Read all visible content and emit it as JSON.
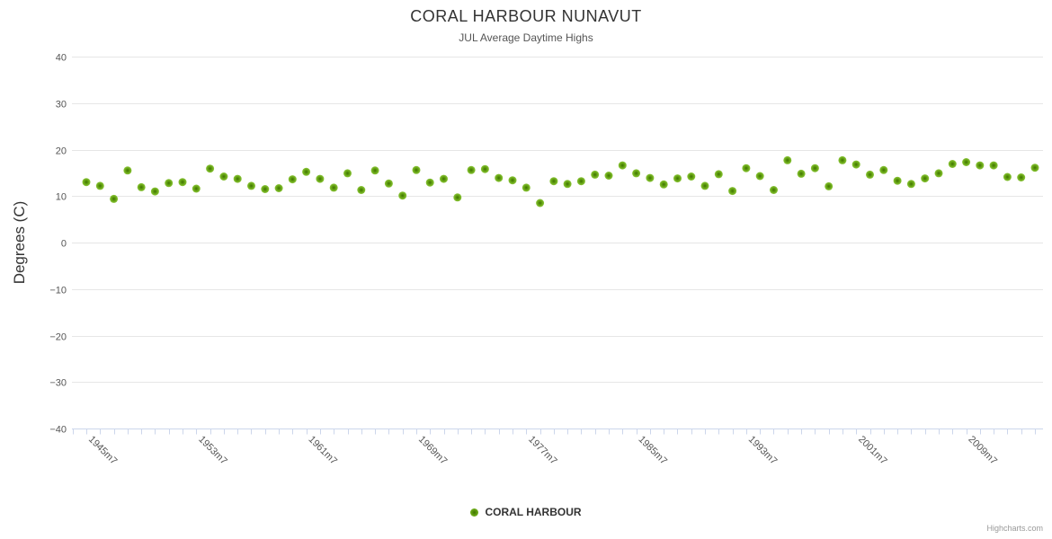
{
  "chart": {
    "credits": "Highcharts.com"
  },
  "colors": {
    "grid": "#e6e6e6",
    "axis_line": "#ccd6eb",
    "tick": "#ccd6eb",
    "axis_label": "#555555",
    "title_text": "#333333",
    "marker_gradient": [
      "#3e7200",
      "#66a414",
      "#8cc63b"
    ]
  },
  "chart_data": {
    "type": "scatter",
    "title": "CORAL HARBOUR NUNAVUT",
    "subtitle": "JUL Average Daytime Highs",
    "xlabel": "",
    "ylabel": "Degrees (C)",
    "ylim": [
      -40,
      40
    ],
    "ytick_interval": 10,
    "ytick_labels": [
      "40",
      "30",
      "20",
      "10",
      "0",
      "-10",
      "-20",
      "-30",
      "-40"
    ],
    "grid": "horizontal",
    "legend_position": "bottom-center",
    "x_label_interval": 8,
    "x_label_suffix": "m7",
    "x_tick_labels_shown": [
      "1945m7",
      "1953m7",
      "1961m7",
      "1969m7",
      "1977m7",
      "1985m7",
      "1993m7",
      "2001m7",
      "2009m7"
    ],
    "x": [
      1945,
      1946,
      1947,
      1948,
      1949,
      1950,
      1951,
      1952,
      1953,
      1954,
      1955,
      1956,
      1957,
      1958,
      1959,
      1960,
      1961,
      1962,
      1963,
      1964,
      1965,
      1966,
      1967,
      1968,
      1969,
      1970,
      1971,
      1972,
      1973,
      1974,
      1975,
      1976,
      1977,
      1978,
      1979,
      1980,
      1981,
      1982,
      1983,
      1984,
      1985,
      1986,
      1987,
      1988,
      1989,
      1990,
      1991,
      1992,
      1993,
      1994,
      1995,
      1996,
      1997,
      1998,
      1999,
      2000,
      2001,
      2002,
      2003,
      2004,
      2005,
      2006,
      2007,
      2008,
      2009,
      2010,
      2011,
      2012,
      2013,
      2014
    ],
    "series": [
      {
        "name": "CORAL HARBOUR",
        "color": "#66a414",
        "values": [
          13.0,
          12.2,
          9.4,
          15.5,
          11.9,
          11.0,
          12.8,
          13.0,
          11.6,
          15.9,
          14.2,
          13.7,
          12.2,
          11.5,
          11.7,
          13.6,
          15.2,
          13.7,
          11.8,
          14.9,
          11.3,
          15.5,
          12.7,
          10.1,
          15.6,
          12.9,
          13.7,
          9.7,
          15.6,
          15.8,
          13.9,
          13.4,
          11.8,
          8.5,
          13.2,
          12.6,
          13.2,
          14.6,
          14.4,
          16.6,
          14.9,
          13.9,
          12.5,
          13.8,
          14.2,
          12.2,
          14.7,
          11.1,
          16.0,
          14.3,
          11.3,
          17.7,
          14.8,
          16.0,
          12.1,
          17.7,
          16.8,
          14.6,
          15.6,
          13.3,
          12.6,
          13.8,
          14.9,
          16.9,
          17.3,
          16.6,
          16.6,
          14.1,
          14.0,
          16.1
        ]
      }
    ]
  }
}
